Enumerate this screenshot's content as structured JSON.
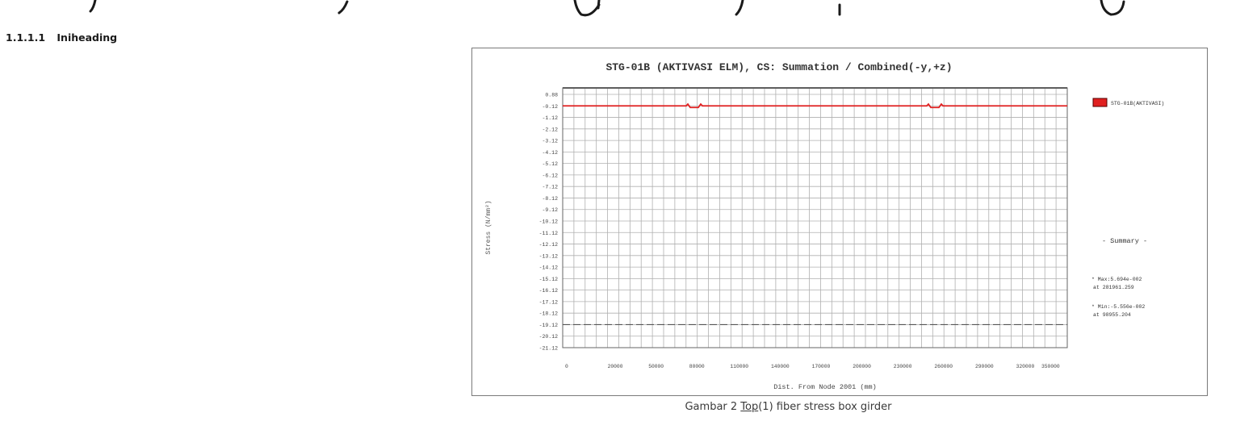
{
  "section_heading": {
    "number": "1.1.1.1",
    "text": "Iniheading"
  },
  "caption": {
    "prefix": "Gambar 2 ",
    "link": "Top",
    "suffix": "(1) fiber stress box girder"
  },
  "colors": {
    "series": "#e02020",
    "grid": "#9a9a9a",
    "text": "#444444",
    "frame": "#7a7a7a"
  },
  "chart_data": {
    "type": "line",
    "title": "STG-01B (AKTIVASI ELM), CS: Summation / Combined(-y,+z)",
    "xlabel": "Dist. From Node 2001 (mm)",
    "ylabel": "Stress (N/mm²)",
    "y_tick_labels": [
      "0.88",
      "-0.12",
      "-1.12",
      "-2.12",
      "-3.12",
      "-4.12",
      "-5.12",
      "-6.12",
      "-7.12",
      "-8.12",
      "-9.12",
      "-10.12",
      "-11.12",
      "-12.12",
      "-13.12",
      "-14.12",
      "-15.12",
      "-16.12",
      "-17.12",
      "-18.12",
      "-19.12",
      "-20.12",
      "-21.12"
    ],
    "x_tick_labels": [
      "0",
      "20000",
      "50000",
      "80000",
      "110000",
      "140000",
      "170000",
      "200000",
      "230000",
      "260000",
      "290000",
      "320000",
      "350000"
    ],
    "xlim": [
      0,
      370000
    ],
    "ylim": [
      -21.12,
      0.88
    ],
    "grid": true,
    "legend_position": "right",
    "series": [
      {
        "name": "STG-01B(AKTIVASI)",
        "x": [
          0,
          90000,
          91500,
          93000,
          98955.204,
          103000,
          104500,
          106000,
          260000,
          261500,
          263000,
          268000,
          281961.259,
          273000,
          274500,
          276000,
          370000
        ],
        "y": [
          0,
          0,
          0.057,
          -0.06,
          -0.05556,
          -0.06,
          0.057,
          0,
          0,
          0.057,
          -0.06,
          -0.06,
          0.05694,
          0.057,
          0,
          0,
          0
        ]
      }
    ],
    "reference_line": {
      "y": -19.12,
      "style": "dashed"
    },
    "summary": {
      "title": "- Summary -",
      "max_label": "* Max:5.694e-002",
      "max_at": "at 281961.259",
      "min_label": "* Min:-5.556e-002",
      "min_at": "at 98955.204"
    }
  }
}
